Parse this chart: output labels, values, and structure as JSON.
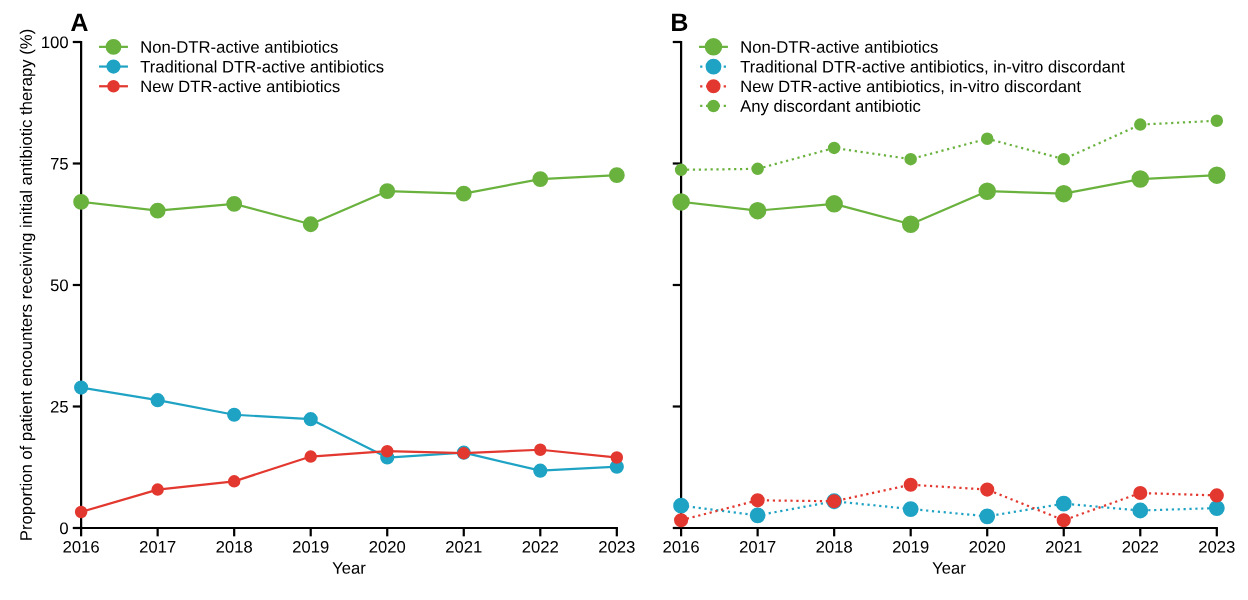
{
  "chart_data": [
    {
      "type": "line",
      "title": "A",
      "ylabel": "Proportion of patient encounters receiving initial antibiotic therapy (%)",
      "xlabel": "Year",
      "x": [
        2016,
        2017,
        2018,
        2019,
        2020,
        2021,
        2022,
        2023
      ],
      "xlim": [
        2016,
        2023
      ],
      "xticks": [
        2016,
        2017,
        2018,
        2019,
        2020,
        2021,
        2022,
        2023
      ],
      "ylim": [
        0,
        100
      ],
      "yticks": [
        0,
        25,
        50,
        75,
        100
      ],
      "grid": false,
      "legend": "top left",
      "marker": "circle",
      "line_style": "solid",
      "series": [
        {
          "name": "Non-DTR-active antibiotics",
          "color": "#6ab23e",
          "values": [
            67.1,
            65.3,
            66.7,
            62.5,
            69.3,
            68.8,
            71.8,
            72.6
          ]
        },
        {
          "name": "Traditional DTR-active antibiotics",
          "color": "#1fa3c4",
          "values": [
            28.9,
            26.3,
            23.3,
            22.4,
            14.5,
            15.5,
            11.8,
            12.6
          ]
        },
        {
          "name": "New DTR-active antibiotics",
          "color": "#e2382f",
          "values": [
            3.3,
            7.9,
            9.6,
            14.7,
            15.8,
            15.4,
            16.1,
            14.5
          ]
        }
      ]
    },
    {
      "type": "line",
      "title": "B",
      "xlabel": "Year",
      "x": [
        2016,
        2017,
        2018,
        2019,
        2020,
        2021,
        2022,
        2023
      ],
      "xlim": [
        2016,
        2023
      ],
      "xticks": [
        2016,
        2017,
        2018,
        2019,
        2020,
        2021,
        2022,
        2023
      ],
      "ylim": [
        0,
        100
      ],
      "yticks": [
        0,
        25,
        50,
        75,
        100
      ],
      "tick_labels": "x",
      "grid": false,
      "legend": "top left",
      "marker": "circle",
      "series": [
        {
          "name": "Non-DTR-active antibiotics",
          "color": "#6ab23e",
          "line_style": "solid",
          "values": [
            67.1,
            65.3,
            66.7,
            62.5,
            69.3,
            68.8,
            71.8,
            72.6
          ]
        },
        {
          "name": "Traditional DTR-active antibiotics, in-vitro discordant",
          "color": "#1fa3c4",
          "line_style": "dotted",
          "values": [
            4.6,
            2.6,
            5.5,
            3.9,
            2.4,
            5.0,
            3.6,
            4.1
          ]
        },
        {
          "name": "New DTR-active antibiotics, in-vitro discordant",
          "color": "#e2382f",
          "line_style": "dotted",
          "values": [
            1.6,
            5.7,
            5.5,
            8.9,
            7.9,
            1.6,
            7.2,
            6.7
          ]
        },
        {
          "name": "Any discordant antibiotic",
          "color": "#6ab23e",
          "line_style": "dotted",
          "values": [
            73.7,
            73.9,
            78.2,
            75.9,
            80.1,
            75.9,
            83.0,
            83.8
          ]
        }
      ]
    }
  ]
}
